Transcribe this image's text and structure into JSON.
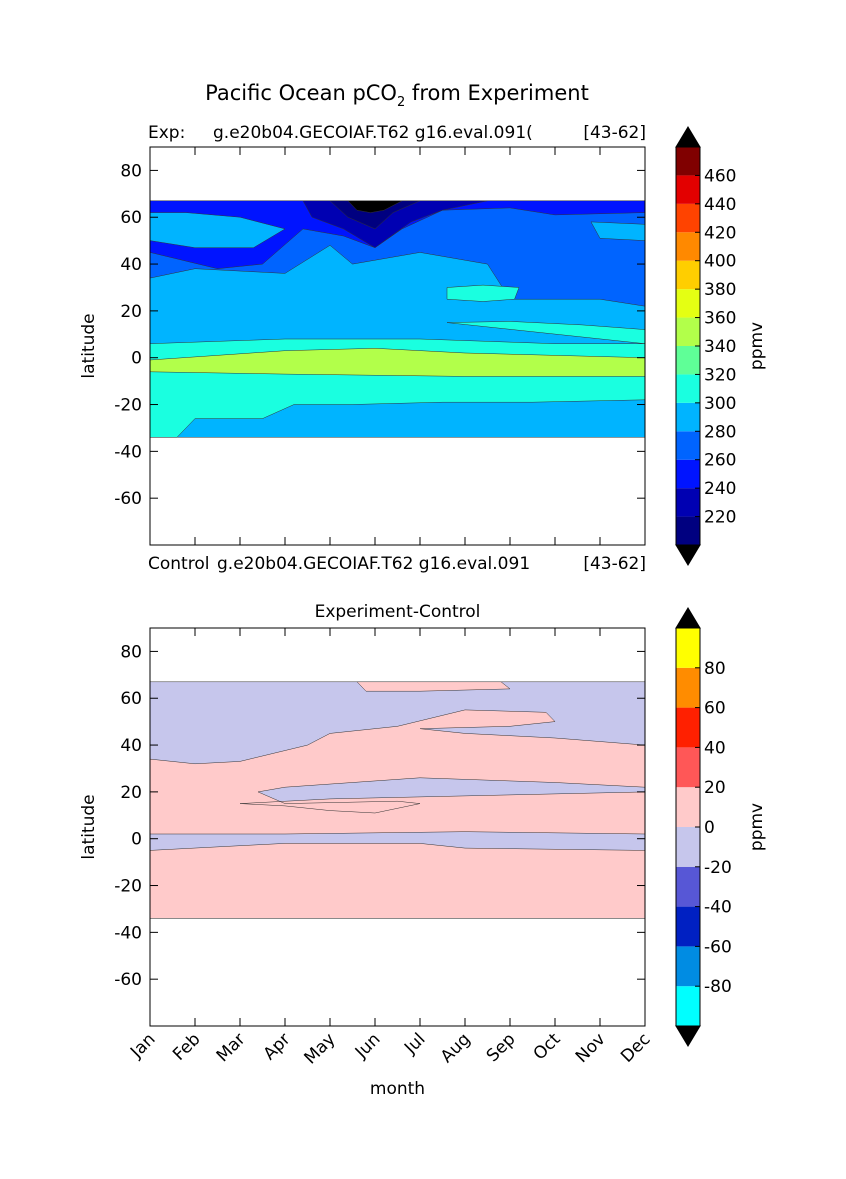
{
  "suptitle_main": "Pacific Ocean pCO",
  "suptitle_sub": "2",
  "suptitle_rest": " from Experiment",
  "chart_data": [
    {
      "type": "heatmap",
      "title": "",
      "left_title": "Exp:",
      "center_title": "g.e20b04.GECOIAF.T62 g16.eval.091(",
      "right_title": "[43-62]",
      "bottom_left_label": "Control",
      "bottom_center_label": "g.e20b04.GECOIAF.T62 g16.eval.091",
      "bottom_right_label": "[43-62]",
      "xlabel": "",
      "ylabel": "latitude",
      "xlim": [
        0,
        11
      ],
      "ylim": [
        -80,
        90
      ],
      "yticks": [
        80,
        60,
        40,
        20,
        0,
        -20,
        -40,
        -60
      ],
      "xticks": [
        "Jan",
        "Feb",
        "Mar",
        "Apr",
        "May",
        "Jun",
        "Jul",
        "Aug",
        "Sep",
        "Oct",
        "Nov",
        "Dec"
      ],
      "colorbar": {
        "label": "ppmv",
        "ticks": [
          460,
          440,
          420,
          400,
          380,
          360,
          340,
          320,
          300,
          280,
          260,
          240,
          220
        ],
        "levels": [
          200,
          220,
          240,
          260,
          280,
          300,
          320,
          340,
          360,
          380,
          400,
          420,
          440,
          460,
          480
        ],
        "colors": [
          "#000080",
          "#0000b2",
          "#0014ff",
          "#0064ff",
          "#00b4ff",
          "#1affe0",
          "#5fff97",
          "#b2ff4a",
          "#e4ff13",
          "#ffce00",
          "#ff8900",
          "#ff4300",
          "#e30000",
          "#800000"
        ],
        "under_color": "#000000",
        "over_color": "#000000"
      },
      "data_extent": {
        "lat_min": -34,
        "lat_max": 67
      },
      "regions": [
        {
          "level": "280-300",
          "points": [
            [
              0,
              67
            ],
            [
              11,
              67
            ],
            [
              11,
              -34
            ],
            [
              0,
              -34
            ]
          ]
        },
        {
          "level": "260-280",
          "points": [
            [
              0,
              67
            ],
            [
              11,
              67
            ],
            [
              11,
              22
            ],
            [
              10,
              25
            ],
            [
              8,
              25
            ],
            [
              7.5,
              40
            ],
            [
              6,
              45
            ],
            [
              4.5,
              40
            ],
            [
              4,
              48
            ],
            [
              3,
              36
            ],
            [
              1,
              38
            ],
            [
              0,
              34
            ]
          ]
        },
        {
          "level": "240-260",
          "points": [
            [
              0,
              67
            ],
            [
              11,
              67
            ],
            [
              11,
              62
            ],
            [
              9,
              61
            ],
            [
              8,
              64
            ],
            [
              6.5,
              63
            ],
            [
              5.6,
              55
            ],
            [
              5,
              47
            ],
            [
              4.3,
              52
            ],
            [
              3.4,
              55
            ],
            [
              2.5,
              40
            ],
            [
              1.5,
              38
            ],
            [
              0,
              45
            ]
          ]
        },
        {
          "level": "220-240",
          "points": [
            [
              3.4,
              67
            ],
            [
              7.5,
              67
            ],
            [
              6.5,
              63
            ],
            [
              5.8,
              58
            ],
            [
              5,
              47
            ],
            [
              4.3,
              55
            ],
            [
              3.6,
              60
            ]
          ]
        },
        {
          "level": "200-220",
          "points": [
            [
              4,
              67
            ],
            [
              6,
              67
            ],
            [
              5.4,
              62
            ],
            [
              5,
              55
            ],
            [
              4.4,
              60
            ]
          ]
        },
        {
          "level": "<200",
          "points": [
            [
              4.4,
              67
            ],
            [
              5.6,
              67
            ],
            [
              5.2,
              63
            ],
            [
              4.9,
              62
            ],
            [
              4.6,
              63
            ]
          ]
        },
        {
          "level": "280-300",
          "points": [
            [
              0,
              62
            ],
            [
              0.8,
              62
            ],
            [
              2,
              60
            ],
            [
              3,
              55
            ],
            [
              2.3,
              47
            ],
            [
              1,
              47
            ],
            [
              0,
              50
            ]
          ]
        },
        {
          "level": "280-300",
          "points": [
            [
              9.8,
              58
            ],
            [
              11,
              57
            ],
            [
              11,
              50
            ],
            [
              10,
              51
            ]
          ]
        },
        {
          "level": "300-320",
          "points": [
            [
              6.6,
              30
            ],
            [
              7.4,
              31
            ],
            [
              8.2,
              30
            ],
            [
              8.1,
              25
            ],
            [
              7.4,
              24
            ],
            [
              6.6,
              25
            ]
          ]
        },
        {
          "level": "300-320",
          "points": [
            [
              6.6,
              15
            ],
            [
              8,
              15.5
            ],
            [
              9.6,
              14
            ],
            [
              11,
              12
            ],
            [
              11,
              6
            ],
            [
              9,
              6
            ],
            [
              6,
              8
            ],
            [
              3,
              8
            ],
            [
              0,
              6
            ],
            [
              0,
              -34
            ],
            [
              0.6,
              -34
            ],
            [
              1,
              -26
            ],
            [
              2.5,
              -26
            ],
            [
              3.2,
              -20
            ],
            [
              4.5,
              -20
            ],
            [
              6.5,
              -19
            ],
            [
              8.5,
              -19
            ],
            [
              11,
              -18
            ],
            [
              11,
              6
            ]
          ]
        },
        {
          "level": "340-360",
          "points": [
            [
              0,
              -1
            ],
            [
              3,
              3
            ],
            [
              5,
              4
            ],
            [
              7,
              2
            ],
            [
              11,
              0
            ],
            [
              11,
              -8
            ],
            [
              7,
              -8
            ],
            [
              3,
              -7
            ],
            [
              0,
              -6
            ]
          ]
        }
      ]
    },
    {
      "type": "heatmap",
      "title": "Experiment-Control",
      "xlabel": "month",
      "ylabel": "latitude",
      "xlim": [
        0,
        11
      ],
      "ylim": [
        -80,
        90
      ],
      "yticks": [
        80,
        60,
        40,
        20,
        0,
        -20,
        -40,
        -60
      ],
      "xticks": [
        "Jan",
        "Feb",
        "Mar",
        "Apr",
        "May",
        "Jun",
        "Jul",
        "Aug",
        "Sep",
        "Oct",
        "Nov",
        "Dec"
      ],
      "colorbar": {
        "label": "ppmv",
        "ticks": [
          80,
          60,
          40,
          20,
          0,
          -20,
          -40,
          -60,
          -80
        ],
        "levels": [
          -100,
          -80,
          -60,
          -40,
          -20,
          0,
          20,
          40,
          60,
          80,
          100
        ],
        "colors": [
          "#00ffff",
          "#008ce3",
          "#0020c2",
          "#5757d6",
          "#c6c6ec",
          "#ffcaca",
          "#ff5757",
          "#ff2000",
          "#ff8c00",
          "#ffff00"
        ],
        "under_color": "#000000",
        "over_color": "#000000"
      },
      "data_extent": {
        "lat_min": -34,
        "lat_max": 67
      },
      "regions": [
        {
          "level": "-20-0",
          "points": [
            [
              0,
              67
            ],
            [
              11,
              67
            ],
            [
              11,
              -34
            ],
            [
              0,
              -34
            ]
          ]
        },
        {
          "level": "0-20",
          "points": [
            [
              0,
              34
            ],
            [
              1,
              32
            ],
            [
              2,
              33
            ],
            [
              3.5,
              40
            ],
            [
              4,
              45
            ],
            [
              5.5,
              48
            ],
            [
              7,
              55
            ],
            [
              8.8,
              54
            ],
            [
              9,
              50
            ],
            [
              8,
              48
            ],
            [
              6,
              47
            ],
            [
              7,
              45
            ],
            [
              9,
              43
            ],
            [
              11,
              40
            ],
            [
              11,
              22
            ],
            [
              9,
              24
            ],
            [
              6,
              26
            ],
            [
              3,
              22
            ],
            [
              2.4,
              20
            ],
            [
              3,
              15
            ],
            [
              5.5,
              16
            ],
            [
              6,
              15
            ],
            [
              5,
              11
            ],
            [
              4,
              12
            ],
            [
              3,
              14
            ],
            [
              2,
              15
            ],
            [
              4,
              17
            ],
            [
              11,
              20
            ],
            [
              11,
              2
            ],
            [
              7,
              3
            ],
            [
              3,
              2
            ],
            [
              0,
              2
            ]
          ]
        },
        {
          "level": "0-20",
          "points": [
            [
              0,
              -5
            ],
            [
              2,
              -3
            ],
            [
              3,
              -2
            ],
            [
              6,
              -2
            ],
            [
              7,
              -4
            ],
            [
              11,
              -5
            ],
            [
              11,
              -34
            ],
            [
              0,
              -34
            ]
          ]
        },
        {
          "level": "0-20",
          "points": [
            [
              4.6,
              67
            ],
            [
              7.8,
              67
            ],
            [
              8,
              64
            ],
            [
              6,
              63
            ],
            [
              4.8,
              63
            ]
          ]
        }
      ]
    }
  ]
}
